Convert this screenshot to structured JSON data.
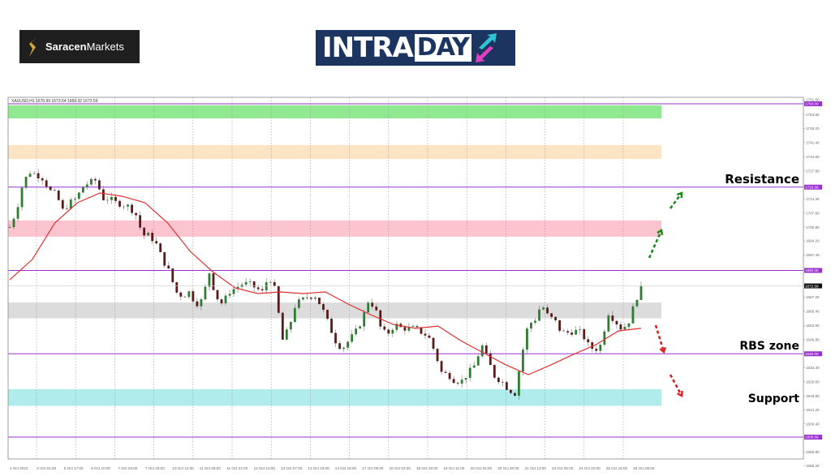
{
  "logos": {
    "saracen": {
      "bold": "Saracen",
      "light": "Markets"
    },
    "intraday": {
      "part1": "INTRA",
      "part2": "DAY"
    }
  },
  "chart_data": {
    "type": "candlestick",
    "symbol_header": "XAUUSD,H1  1670.99 1673.54 1669.32 1672.59",
    "last_price": "1672.59",
    "ylim": [
      1586.2,
      1761.6
    ],
    "y_ticks": [
      "1761.60",
      "1754.80",
      "1748.20",
      "1741.40",
      "1734.60",
      "1727.80",
      "1714.40",
      "1707.60",
      "1700.80",
      "1694.20",
      "1687.40",
      "1667.20",
      "1660.40",
      "1653.60",
      "1646.80",
      "1633.40",
      "1626.60",
      "1619.80",
      "1613.20",
      "1606.40",
      "1592.80",
      "1586.20"
    ],
    "x_ticks": [
      "4 Oct 2022",
      "5 Oct 01:00",
      "5 Oct 17:00",
      "6 Oct 10:00",
      "7 Oct 03:00",
      "7 Oct 19:00",
      "10 Oct 12:00",
      "11 Oct 05:00",
      "11 Oct 21:00",
      "12 Oct 14:00",
      "13 Oct 07:00",
      "13 Oct 23:00",
      "14 Oct 16:00",
      "17 Oct 09:00",
      "18 Oct 02:00",
      "18 Oct 18:00",
      "19 Oct 11:00",
      "20 Oct 04:00",
      "20 Oct 20:00",
      "21 Oct 13:00",
      "24 Oct 06:00",
      "24 Oct 22:00",
      "25 Oct 16:00",
      "26 Oct 09:00"
    ],
    "grid": "vertical dotted",
    "price_path": [
      1700.8,
      1708.6,
      1722.2,
      1727.3,
      1726.1,
      1724.2,
      1718.3,
      1716.4,
      1708.6,
      1712.5,
      1714.5,
      1720.3,
      1722.2,
      1723.4,
      1714.5,
      1714.5,
      1712.5,
      1711.7,
      1710.6,
      1706.7,
      1696.9,
      1696.9,
      1693.0,
      1685.3,
      1679.4,
      1669.7,
      1667.7,
      1669.7,
      1663.9,
      1665.8,
      1679.4,
      1667.7,
      1663.9,
      1669.7,
      1671.6,
      1673.6,
      1673.6,
      1671.6,
      1669.7,
      1677.5,
      1669.7,
      1646.3,
      1652.2,
      1663.9,
      1665.8,
      1667.7,
      1667.7,
      1661.9,
      1654.1,
      1646.3,
      1642.4,
      1646.3,
      1650.2,
      1656.1,
      1665.8,
      1661.9,
      1650.2,
      1650.2,
      1654.1,
      1652.2,
      1652.2,
      1652.2,
      1650.2,
      1648.3,
      1640.5,
      1630.8,
      1630.0,
      1626.9,
      1626.9,
      1630.8,
      1634.7,
      1644.4,
      1636.6,
      1628.8,
      1626.9,
      1623.0,
      1621.0,
      1638.6,
      1654.1,
      1656.1,
      1663.9,
      1658.0,
      1656.1,
      1650.2,
      1650.2,
      1651.0,
      1650.2,
      1644.4,
      1641.7,
      1644.4,
      1660.0,
      1656.1,
      1652.2,
      1654.1,
      1663.9,
      1672.59
    ],
    "moving_average": {
      "color": "#e03030",
      "values": [
        1675.5,
        1685.3,
        1702.8,
        1712.5,
        1717.2,
        1715.6,
        1712.5,
        1702.8,
        1689.2,
        1679.4,
        1671.6,
        1668.9,
        1669.7,
        1668.9,
        1669.7,
        1663.9,
        1658.8,
        1654.1,
        1652.2,
        1653.3,
        1646.3,
        1640.5,
        1634.7,
        1630.0,
        1634.7,
        1639.7,
        1644.4,
        1651.0,
        1652.2
      ]
    },
    "colors": {
      "bull": "#2e7d32",
      "bear": "#5a1a1a",
      "level_line": "#9b30d0"
    },
    "levels": [
      {
        "price": 1760.0,
        "label": "1760.00"
      },
      {
        "price": 1720.0,
        "label": "1720.00"
      },
      {
        "price": 1680.0,
        "label": "1680.00"
      },
      {
        "price": 1640.0,
        "label": "1640.00"
      },
      {
        "price": 1600.0,
        "label": "1600.00"
      }
    ],
    "zones": [
      {
        "from": 1753.0,
        "to": 1759.3,
        "color": "#90e890"
      },
      {
        "from": 1733.5,
        "to": 1740.2,
        "color": "#fde4c4"
      },
      {
        "from": 1696.2,
        "to": 1704.0,
        "color": "#fbc4cf"
      },
      {
        "from": 1657.0,
        "to": 1664.6,
        "color": "#dcdcdc"
      },
      {
        "from": 1615.0,
        "to": 1623.0,
        "color": "#b0ecec"
      }
    ],
    "annotations": [
      {
        "text": "Resistance",
        "color": "#8b1010"
      },
      {
        "text": "RBS zone",
        "color": "#f07a30"
      },
      {
        "text": "Support",
        "color": "#1515d0"
      }
    ],
    "arrows": [
      {
        "direction": "up",
        "color": "#1a8a1a"
      },
      {
        "direction": "up",
        "color": "#1a8a1a"
      },
      {
        "direction": "down",
        "color": "#e02020"
      },
      {
        "direction": "down",
        "color": "#e02020"
      }
    ]
  }
}
